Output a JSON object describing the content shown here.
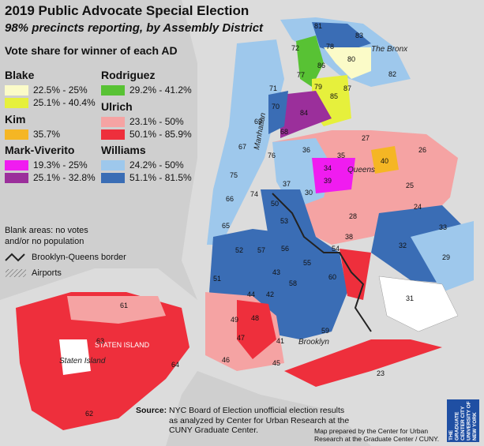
{
  "title": "2019 Public Advocate Special Election",
  "subtitle": "98% precincts reporting, by Assembly District",
  "legend": {
    "heading": "Vote share for winner of each AD",
    "candidates": [
      {
        "name": "Blake",
        "ranges": [
          {
            "label": "22.5% - 25%",
            "color": "#fbfbc8"
          },
          {
            "label": "25.1% - 40.4%",
            "color": "#e6f03c"
          }
        ]
      },
      {
        "name": "Kim",
        "ranges": [
          {
            "label": "35.7%",
            "color": "#f5b624"
          }
        ]
      },
      {
        "name": "Mark-Viverito",
        "ranges": [
          {
            "label": "19.3% - 25%",
            "color": "#f01cf0"
          },
          {
            "label": "25.1% - 32.8%",
            "color": "#9b2f9b"
          }
        ]
      },
      {
        "name": "Rodriguez",
        "ranges": [
          {
            "label": "29.2% - 41.2%",
            "color": "#58c234"
          }
        ]
      },
      {
        "name": "Ulrich",
        "ranges": [
          {
            "label": "23.1% - 50%",
            "color": "#f5a3a3"
          },
          {
            "label": "50.1% - 85.9%",
            "color": "#ee2f3c"
          }
        ]
      },
      {
        "name": "Williams",
        "ranges": [
          {
            "label": "24.2% - 50%",
            "color": "#9ec8ec"
          },
          {
            "label": "51.1% - 81.5%",
            "color": "#3a6db5"
          }
        ]
      }
    ],
    "blank_note": "Blank areas: no votes\nand/or no population",
    "border_label": "Brooklyn-Queens border",
    "airports_label": "Airports"
  },
  "boroughs": [
    "The Bronx",
    "Manhattan",
    "Queens",
    "Brooklyn",
    "STATEN ISLAND",
    "Staten Island"
  ],
  "district_labels": [
    "81",
    "83",
    "72",
    "78",
    "80",
    "71",
    "77",
    "86",
    "82",
    "79",
    "87",
    "85",
    "70",
    "84",
    "69",
    "68",
    "67",
    "76",
    "36",
    "35",
    "27",
    "26",
    "75",
    "74",
    "34",
    "39",
    "40",
    "66",
    "37",
    "30",
    "25",
    "24",
    "50",
    "53",
    "28",
    "65",
    "52",
    "57",
    "56",
    "54",
    "38",
    "33",
    "32",
    "55",
    "51",
    "43",
    "58",
    "60",
    "29",
    "44",
    "42",
    "31",
    "49",
    "48",
    "59",
    "47",
    "41",
    "45",
    "46",
    "61",
    "63",
    "64",
    "23",
    "62"
  ],
  "source": {
    "label": "Source:",
    "text": "NYC Board of Election unofficial election results as analyzed by Center for Urban Research at the CUNY Graduate Center."
  },
  "credit": "Map prepared by the Center for Urban Research at the Graduate Center / CUNY.",
  "logo_text": "THE GRADUATE CENTER CITY UNIVERSITY OF NEW YORK"
}
